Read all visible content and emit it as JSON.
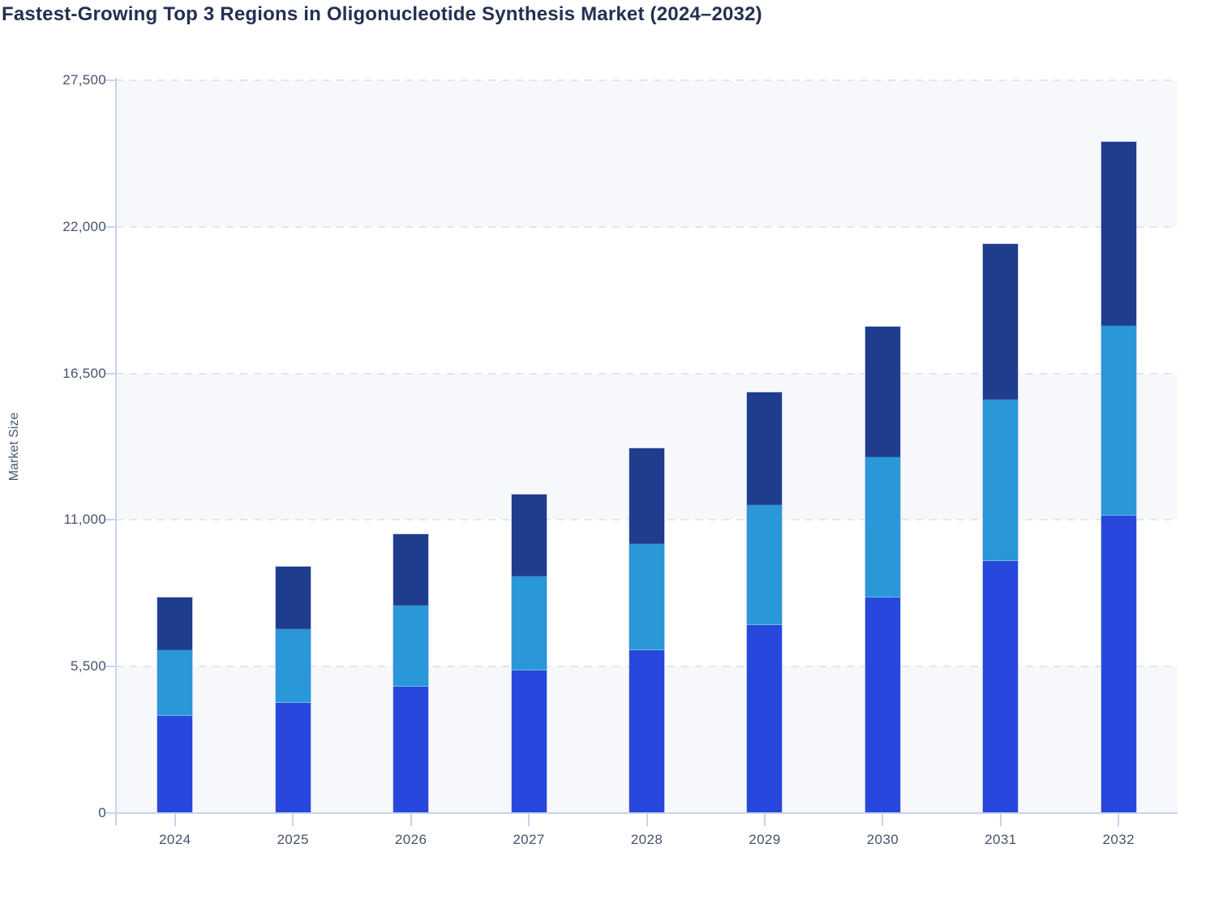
{
  "chart": {
    "title": "Fastest-Growing Top 3 Regions in Oligonucleotide Synthesis Market (2024–2032)",
    "y_axis_title": "Market Size"
  },
  "chart_data": {
    "type": "bar",
    "stacked": true,
    "title": "Fastest-Growing Top 3 Regions in Oligonucleotide Synthesis Market (2024–2032)",
    "xlabel": "",
    "ylabel": "Market Size",
    "categories": [
      "2024",
      "2025",
      "2026",
      "2027",
      "2028",
      "2029",
      "2030",
      "2031",
      "2032"
    ],
    "series": [
      {
        "name": "region-segment-bottom",
        "color": "#2847dc",
        "values": [
          3650,
          4150,
          4750,
          5350,
          6100,
          7050,
          8100,
          9450,
          11150
        ]
      },
      {
        "name": "region-segment-middle",
        "color": "#2997d8",
        "values": [
          2450,
          2750,
          3050,
          3520,
          4000,
          4520,
          5240,
          6070,
          7120
        ]
      },
      {
        "name": "region-segment-top",
        "color": "#1f3d8c",
        "values": [
          2000,
          2350,
          2650,
          3080,
          3600,
          4210,
          4900,
          5830,
          6930
        ]
      }
    ],
    "stack_totals": [
      8100,
      9250,
      10450,
      11950,
      13700,
      15780,
      18240,
      21350,
      25200
    ],
    "ylim": [
      0,
      27500
    ],
    "yticks": [
      0,
      5500,
      11000,
      16500,
      22000,
      27500
    ],
    "ytick_labels": [
      "0",
      "5,500",
      "11,000",
      "16,500",
      "22,000",
      "27,500"
    ],
    "grid": "horizontal-dashed",
    "legend": "none",
    "band_fill": "#f7f8fb",
    "axis_color": "#c8d3ee",
    "gridline_color": "#e3e5ea",
    "tick_label_color": "#47536b",
    "title_color": "#253050"
  }
}
